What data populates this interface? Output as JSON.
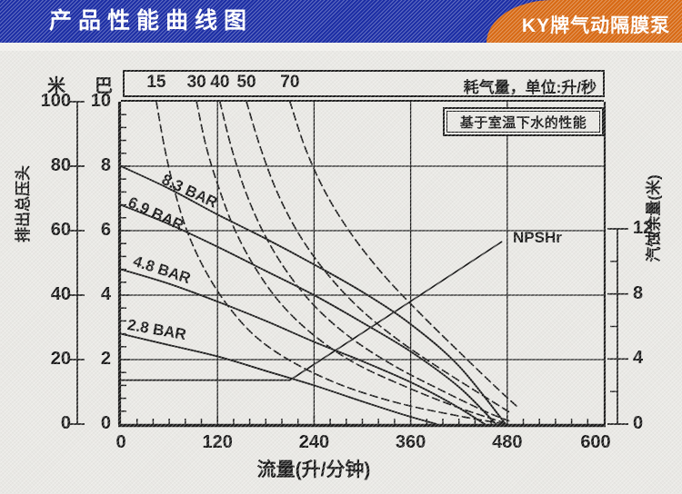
{
  "header": {
    "title": "产品性能曲线图",
    "badge": "KY牌气动隔膜泵"
  },
  "colors": {
    "header_bg": "#1c2ea6",
    "badge_bg": "#d96a14",
    "ink": "#1a1a1a",
    "paper": "#e9e8e4"
  },
  "chart_data": {
    "type": "line",
    "note": "基于室温下水的性能",
    "x_axis": {
      "title": "流量(升/分钟)",
      "range": [
        0,
        600
      ],
      "major_ticks": [
        0,
        120,
        240,
        360,
        480,
        600
      ],
      "minor_step": 20,
      "grid_at": [
        120,
        240,
        360,
        480
      ]
    },
    "y_axis_head": {
      "unit_m": "米",
      "unit_bar": "巴",
      "title": "排出总压头",
      "m_ticks": [
        100,
        80,
        60,
        40,
        20,
        0
      ],
      "bar_ticks": [
        10,
        8,
        6,
        4,
        2,
        0
      ],
      "range_m": [
        0,
        100
      ],
      "grid_at_m": [
        80,
        60,
        40,
        20
      ]
    },
    "y_axis_npsh": {
      "title": "汽蚀余量(米)",
      "ticks": [
        12,
        8,
        4,
        0
      ],
      "minor_ticks": [
        2,
        6,
        10
      ],
      "range": [
        0,
        12
      ]
    },
    "top_axis": {
      "title": "耗气量，单位:升/秒"
    },
    "pressure_series": [
      {
        "name": "8.3 BAR",
        "points": [
          [
            0,
            80
          ],
          [
            60,
            73
          ],
          [
            120,
            65
          ],
          [
            180,
            57.5
          ],
          [
            240,
            49.5
          ],
          [
            300,
            41
          ],
          [
            360,
            31
          ],
          [
            420,
            18
          ],
          [
            478,
            0
          ]
        ]
      },
      {
        "name": "6.9 BAR",
        "points": [
          [
            0,
            68
          ],
          [
            60,
            62
          ],
          [
            120,
            55
          ],
          [
            180,
            47.5
          ],
          [
            240,
            40
          ],
          [
            300,
            31.5
          ],
          [
            360,
            22.5
          ],
          [
            420,
            11.5
          ],
          [
            466,
            0
          ]
        ]
      },
      {
        "name": "4.8 BAR",
        "points": [
          [
            0,
            48
          ],
          [
            60,
            43.5
          ],
          [
            120,
            38
          ],
          [
            180,
            32
          ],
          [
            240,
            25.5
          ],
          [
            300,
            19.5
          ],
          [
            360,
            13
          ],
          [
            410,
            6.5
          ],
          [
            452,
            0
          ]
        ]
      },
      {
        "name": "2.8 BAR",
        "points": [
          [
            0,
            28
          ],
          [
            60,
            24.5
          ],
          [
            120,
            21
          ],
          [
            180,
            16.5
          ],
          [
            240,
            12
          ],
          [
            300,
            7
          ],
          [
            350,
            3
          ],
          [
            392,
            0
          ]
        ]
      }
    ],
    "air_series": [
      {
        "name": "15",
        "points": [
          [
            44,
            100
          ],
          [
            54,
            86
          ],
          [
            66,
            73
          ],
          [
            82,
            60
          ],
          [
            104,
            48
          ],
          [
            132,
            37
          ],
          [
            168,
            27
          ],
          [
            215,
            19
          ],
          [
            275,
            12
          ],
          [
            345,
            6.5
          ],
          [
            420,
            2.5
          ],
          [
            478,
            0
          ]
        ]
      },
      {
        "name": "30",
        "points": [
          [
            94,
            100
          ],
          [
            106,
            86
          ],
          [
            122,
            73
          ],
          [
            142,
            60
          ],
          [
            168,
            48
          ],
          [
            200,
            37
          ],
          [
            240,
            27.5
          ],
          [
            290,
            19
          ],
          [
            350,
            12
          ],
          [
            415,
            5.5
          ],
          [
            475,
            0.5
          ]
        ]
      },
      {
        "name": "40",
        "points": [
          [
            123,
            100
          ],
          [
            137,
            86
          ],
          [
            155,
            72
          ],
          [
            178,
            59
          ],
          [
            207,
            47
          ],
          [
            243,
            36
          ],
          [
            287,
            26.5
          ],
          [
            340,
            18
          ],
          [
            398,
            10.5
          ],
          [
            452,
            4
          ],
          [
            482,
            1
          ]
        ]
      },
      {
        "name": "50",
        "points": [
          [
            156,
            100
          ],
          [
            173,
            86
          ],
          [
            194,
            72
          ],
          [
            221,
            59
          ],
          [
            255,
            47
          ],
          [
            296,
            36
          ],
          [
            345,
            26
          ],
          [
            398,
            17
          ],
          [
            452,
            8.5
          ],
          [
            484,
            3.5
          ]
        ]
      },
      {
        "name": "70",
        "points": [
          [
            210,
            100
          ],
          [
            230,
            85
          ],
          [
            256,
            71
          ],
          [
            289,
            58
          ],
          [
            329,
            45.5
          ],
          [
            375,
            33.5
          ],
          [
            424,
            21.5
          ],
          [
            470,
            10.5
          ],
          [
            492,
            5.5
          ]
        ]
      }
    ],
    "npshr": {
      "label": "NPSHr",
      "points_flow_npsh": [
        [
          0,
          2.7
        ],
        [
          210,
          2.7
        ],
        [
          473,
          11.2
        ]
      ]
    }
  }
}
